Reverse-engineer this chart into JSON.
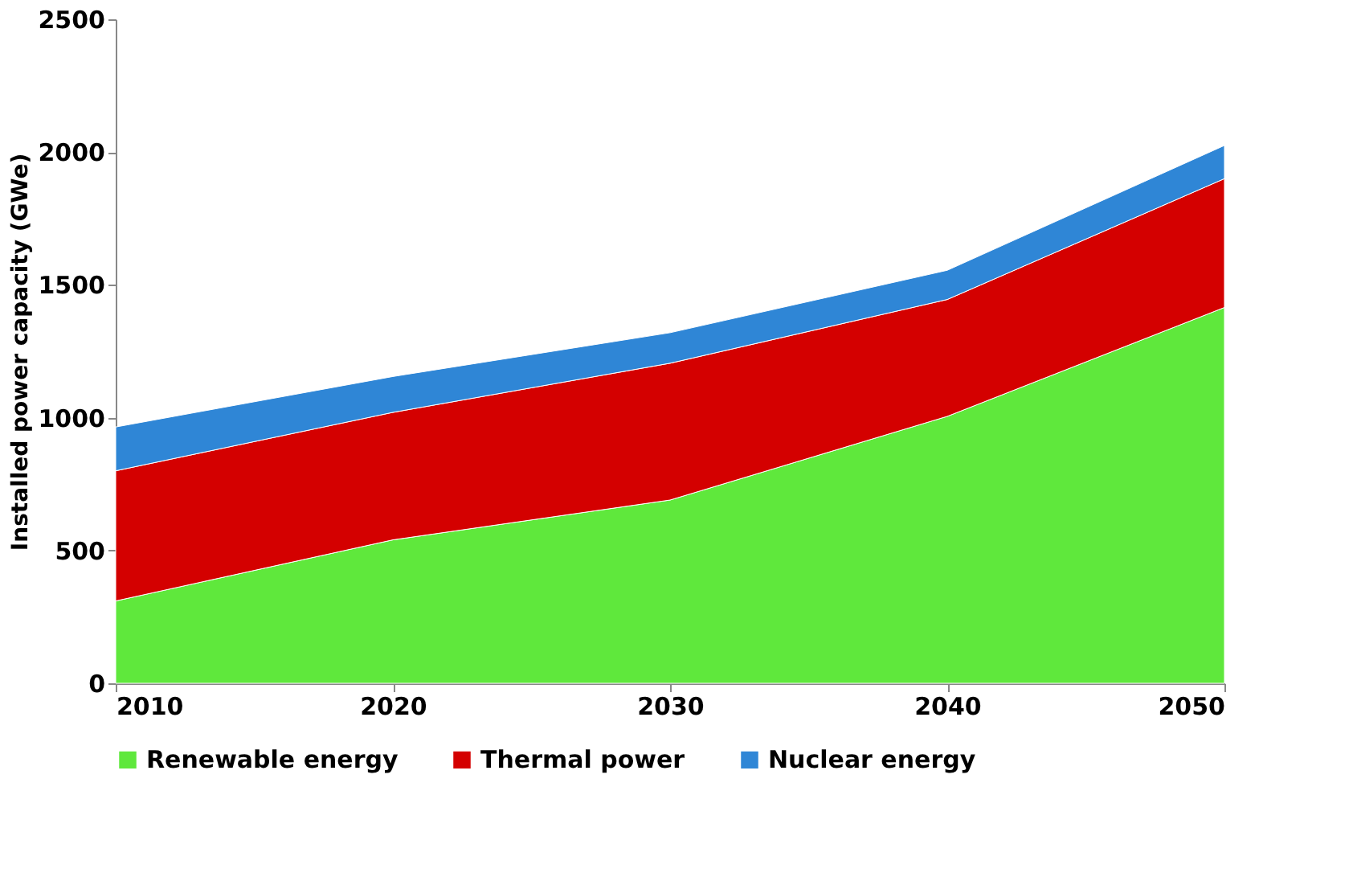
{
  "chart_data": {
    "type": "area",
    "stacked": true,
    "ylabel": "Installed power capacity  (GWe)",
    "x": [
      2010,
      2020,
      2030,
      2040,
      2050
    ],
    "series": [
      {
        "name": "Renewable energy",
        "color": "#5fe83c",
        "values": [
          310,
          540,
          690,
          1005,
          1415
        ]
      },
      {
        "name": "Thermal power",
        "color": "#d40000",
        "values": [
          490,
          480,
          515,
          440,
          485
        ]
      },
      {
        "name": "Nuclear energy",
        "color": "#2f86d6",
        "values": [
          165,
          135,
          115,
          110,
          125
        ]
      }
    ],
    "xlim": [
      2010,
      2050
    ],
    "xticks": [
      2010,
      2020,
      2030,
      2040,
      2050
    ],
    "ylim": [
      0,
      2500
    ],
    "yticks": [
      0,
      500,
      1000,
      1500,
      2000,
      2500
    ],
    "grid": false,
    "legend": "bottom"
  }
}
